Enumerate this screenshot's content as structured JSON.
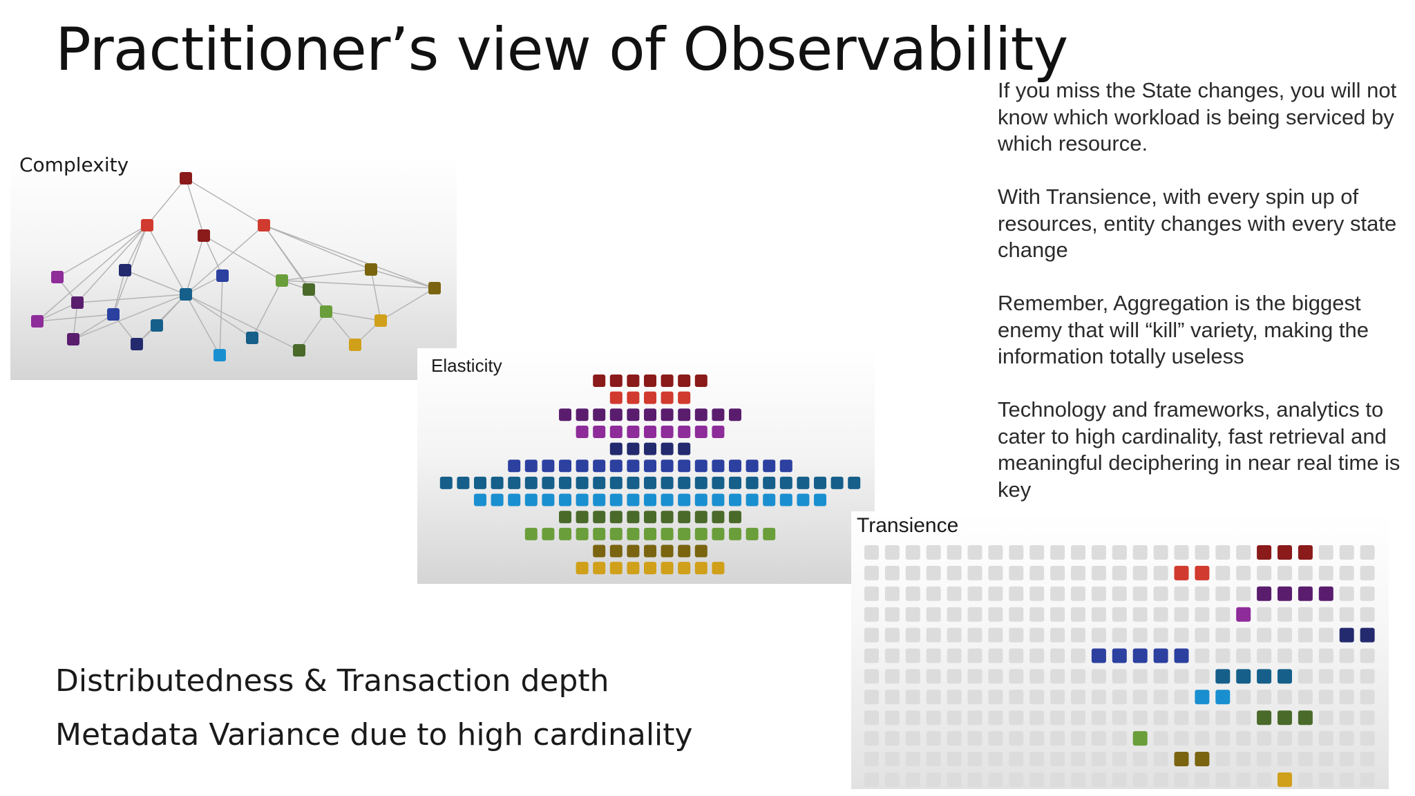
{
  "slide": {
    "title": "Practitioner’s view of Observability",
    "notes": [
      "If you miss the State changes, you will not know which workload is being serviced by which resource.",
      "With Transience, with every spin up of resources, entity changes with every state change",
      "Remember, Aggregation is the biggest enemy that will “kill” variety, making the information totally useless",
      "Technology and frameworks, analytics to cater to high cardinality, fast retrieval and meaningful deciphering in near real time is key"
    ],
    "bottom_lines": [
      "Distributedness & Transaction depth",
      "Metadata Variance due to high cardinality"
    ]
  },
  "panels": {
    "complexity": {
      "label": "Complexity"
    },
    "elasticity": {
      "label": "Elasticity"
    },
    "transience": {
      "label": "Transience"
    }
  },
  "colors": {
    "darkred": "#8b1a1a",
    "red": "#d13a2e",
    "darkpurple": "#5a1d6e",
    "purple": "#8e2c9a",
    "navy": "#242a6e",
    "blue": "#2c40a0",
    "teal": "#155f8a",
    "skyblue": "#1a8fd0",
    "darkgreen": "#4a6a2a",
    "green": "#6a9e3a",
    "olive": "#7a6410",
    "gold": "#d0a01a",
    "empty": "#dcdcdc"
  },
  "elasticity_rows": [
    {
      "color": "darkred",
      "count": 7
    },
    {
      "color": "red",
      "count": 5
    },
    {
      "color": "darkpurple",
      "count": 11
    },
    {
      "color": "purple",
      "count": 9
    },
    {
      "color": "navy",
      "count": 5
    },
    {
      "color": "blue",
      "count": 17
    },
    {
      "color": "teal",
      "count": 25
    },
    {
      "color": "skyblue",
      "count": 21
    },
    {
      "color": "darkgreen",
      "count": 11
    },
    {
      "color": "green",
      "count": 15
    },
    {
      "color": "olive",
      "count": 7
    },
    {
      "color": "gold",
      "count": 9
    }
  ],
  "transience_rows": [
    {
      "color": "darkred",
      "start": 19,
      "count": 3
    },
    {
      "color": "red",
      "start": 15,
      "count": 2
    },
    {
      "color": "darkpurple",
      "start": 19,
      "count": 4
    },
    {
      "color": "purple",
      "start": 18,
      "count": 1
    },
    {
      "color": "navy",
      "start": 23,
      "count": 2
    },
    {
      "color": "blue",
      "start": 11,
      "count": 5
    },
    {
      "color": "teal",
      "start": 17,
      "count": 4
    },
    {
      "color": "skyblue",
      "start": 16,
      "count": 2
    },
    {
      "color": "darkgreen",
      "start": 19,
      "count": 3
    },
    {
      "color": "green",
      "start": 13,
      "count": 1
    },
    {
      "color": "olive",
      "start": 15,
      "count": 2
    },
    {
      "color": "gold",
      "start": 20,
      "count": 1
    }
  ]
}
